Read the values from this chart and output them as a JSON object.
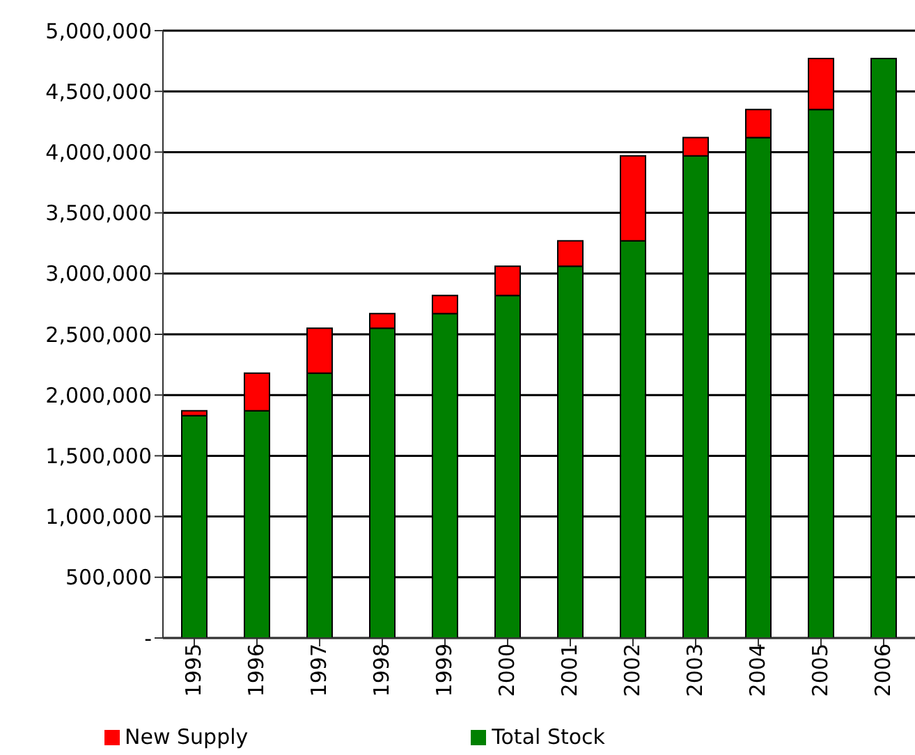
{
  "chart_data": {
    "type": "bar",
    "stacked": true,
    "categories": [
      "1995",
      "1996",
      "1997",
      "1998",
      "1999",
      "2000",
      "2001",
      "2002",
      "2003",
      "2004",
      "2005",
      "2006"
    ],
    "series": [
      {
        "name": "Total Stock",
        "color": "#008000",
        "values": [
          1830000,
          1870000,
          2180000,
          2550000,
          2670000,
          2820000,
          3060000,
          3270000,
          3970000,
          4120000,
          4350000,
          4770000
        ]
      },
      {
        "name": "New Supply",
        "color": "#ff0000",
        "values": [
          40000,
          310000,
          370000,
          120000,
          150000,
          240000,
          210000,
          700000,
          150000,
          230000,
          420000,
          null
        ]
      }
    ],
    "ylim": [
      0,
      5000000
    ],
    "yticks": [
      {
        "value": 0,
        "label": "-"
      },
      {
        "value": 500000,
        "label": "500,000"
      },
      {
        "value": 1000000,
        "label": "1,000,000"
      },
      {
        "value": 1500000,
        "label": "1,500,000"
      },
      {
        "value": 2000000,
        "label": "2,000,000"
      },
      {
        "value": 2500000,
        "label": "2,500,000"
      },
      {
        "value": 3000000,
        "label": "3,000,000"
      },
      {
        "value": 3500000,
        "label": "3,500,000"
      },
      {
        "value": 4000000,
        "label": "4,000,000"
      },
      {
        "value": 4500000,
        "label": "4,500,000"
      },
      {
        "value": 5000000,
        "label": "5,000,000"
      }
    ],
    "grid": "y",
    "legend": "bottom"
  }
}
